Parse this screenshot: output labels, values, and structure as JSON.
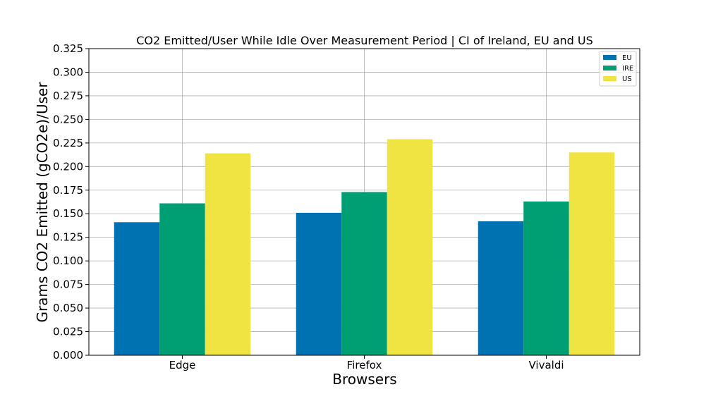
{
  "chart_data": {
    "type": "bar",
    "title": "CO2 Emitted/User While Idle Over Measurement Period | CI of Ireland, EU and US",
    "xlabel": "Browsers",
    "ylabel": "Grams CO2 Emitted (gCO2e)/User",
    "categories": [
      "Edge",
      "Firefox",
      "Vivaldi"
    ],
    "series": [
      {
        "name": "EU",
        "color": "#0072b2",
        "values": [
          0.141,
          0.151,
          0.142
        ]
      },
      {
        "name": "IRE",
        "color": "#009e73",
        "values": [
          0.161,
          0.173,
          0.163
        ]
      },
      {
        "name": "US",
        "color": "#f0e442",
        "values": [
          0.214,
          0.229,
          0.215
        ]
      }
    ],
    "ylim": [
      0,
      0.325
    ],
    "yticks": [
      "0.000",
      "0.025",
      "0.050",
      "0.075",
      "0.100",
      "0.125",
      "0.150",
      "0.175",
      "0.200",
      "0.225",
      "0.250",
      "0.275",
      "0.300",
      "0.325"
    ],
    "grid": true,
    "legend_position": "top-right"
  }
}
